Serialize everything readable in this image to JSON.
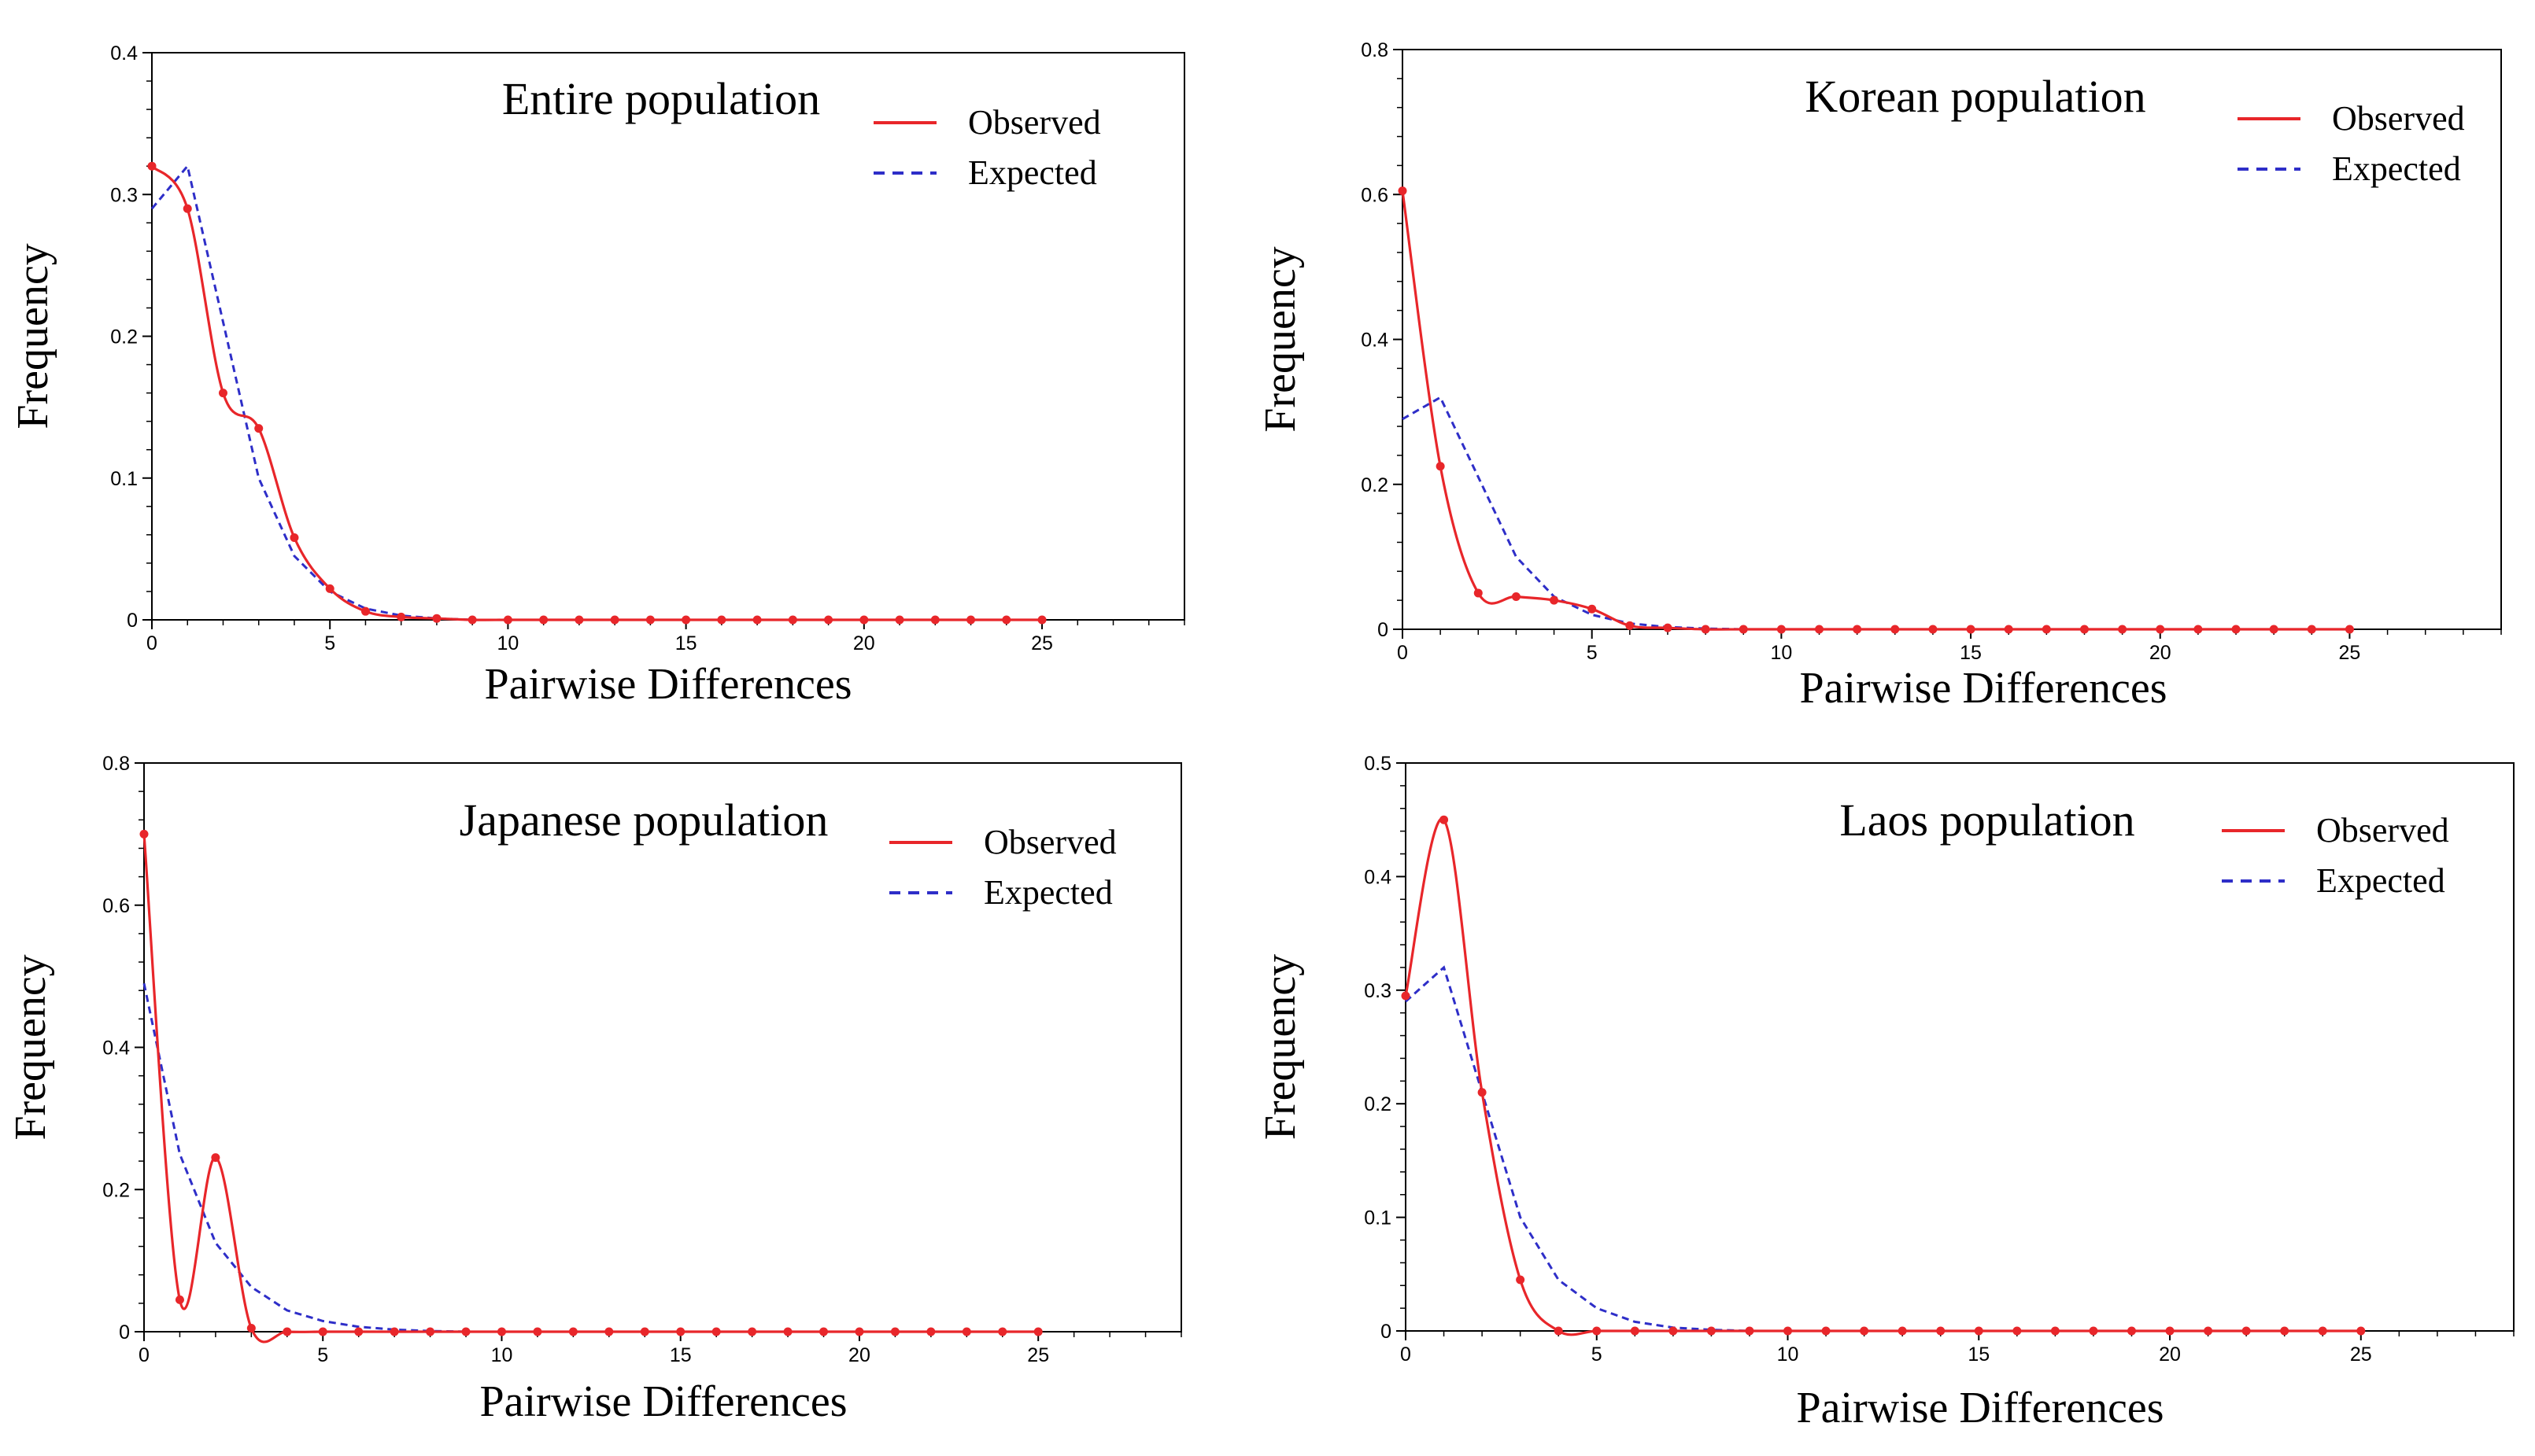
{
  "chart_data": [
    {
      "type": "line",
      "title": "Entire population",
      "xlabel": "Pairwise Differences",
      "ylabel": "Frequency",
      "xlim": [
        0,
        29
      ],
      "ylim": [
        0,
        0.4
      ],
      "xticks": [
        0,
        5,
        10,
        15,
        20,
        25
      ],
      "xtick_labels": [
        "0",
        "5",
        "10",
        "15",
        "20",
        "25"
      ],
      "yticks": [
        0,
        0.1,
        0.2,
        0.3,
        0.4
      ],
      "ytick_labels": [
        "0",
        "0.1",
        "0.2",
        "0.3",
        "0.4"
      ],
      "legend": [
        "Observed",
        "Expected"
      ],
      "legend_position": "top-right",
      "x": [
        0,
        1,
        2,
        3,
        4,
        5,
        6,
        7,
        8,
        9,
        10,
        11,
        12,
        13,
        14,
        15,
        16,
        17,
        18,
        19,
        20,
        21,
        22,
        23,
        24,
        25
      ],
      "series": [
        {
          "name": "Observed",
          "color": "#e8262a",
          "style": "solid",
          "values": [
            0.32,
            0.29,
            0.16,
            0.135,
            0.058,
            0.022,
            0.006,
            0.002,
            0.001,
            0,
            0,
            0,
            0,
            0,
            0,
            0,
            0,
            0,
            0,
            0,
            0,
            0,
            0,
            0,
            0,
            0
          ]
        },
        {
          "name": "Expected",
          "color": "#2e2ec8",
          "style": "dashed",
          "values": [
            0.29,
            0.32,
            0.21,
            0.1,
            0.045,
            0.02,
            0.008,
            0.003,
            0.001,
            0,
            0,
            0,
            0,
            0,
            0,
            0,
            0,
            0,
            0,
            0,
            0,
            0,
            0,
            0,
            0,
            0
          ]
        }
      ]
    },
    {
      "type": "line",
      "title": "Korean population",
      "xlabel": "Pairwise Differences",
      "ylabel": "Frequency",
      "xlim": [
        0,
        29
      ],
      "ylim": [
        0,
        0.8
      ],
      "xticks": [
        0,
        5,
        10,
        15,
        20,
        25
      ],
      "xtick_labels": [
        "0",
        "5",
        "10",
        "15",
        "20",
        "25"
      ],
      "yticks": [
        0,
        0.2,
        0.4,
        0.6,
        0.8
      ],
      "ytick_labels": [
        "0",
        "0.2",
        "0.4",
        "0.6",
        "0.8"
      ],
      "legend": [
        "Observed",
        "Expected"
      ],
      "legend_position": "top-right",
      "x": [
        0,
        1,
        2,
        3,
        4,
        5,
        6,
        7,
        8,
        9,
        10,
        11,
        12,
        13,
        14,
        15,
        16,
        17,
        18,
        19,
        20,
        21,
        22,
        23,
        24,
        25
      ],
      "series": [
        {
          "name": "Observed",
          "color": "#e8262a",
          "style": "solid",
          "values": [
            0.605,
            0.225,
            0.05,
            0.045,
            0.04,
            0.028,
            0.005,
            0.002,
            0,
            0,
            0,
            0,
            0,
            0,
            0,
            0,
            0,
            0,
            0,
            0,
            0,
            0,
            0,
            0,
            0,
            0
          ]
        },
        {
          "name": "Expected",
          "color": "#2e2ec8",
          "style": "dashed",
          "values": [
            0.29,
            0.32,
            0.21,
            0.1,
            0.045,
            0.02,
            0.008,
            0.003,
            0.001,
            0,
            0,
            0,
            0,
            0,
            0,
            0,
            0,
            0,
            0,
            0,
            0,
            0,
            0,
            0,
            0,
            0
          ]
        }
      ]
    },
    {
      "type": "line",
      "title": "Japanese population",
      "xlabel": "Pairwise Differences",
      "ylabel": "Frequency",
      "xlim": [
        0,
        29
      ],
      "ylim": [
        0,
        0.8
      ],
      "xticks": [
        0,
        5,
        10,
        15,
        20,
        25
      ],
      "xtick_labels": [
        "0",
        "5",
        "10",
        "15",
        "20",
        "25"
      ],
      "yticks": [
        0,
        0.2,
        0.4,
        0.6,
        0.8
      ],
      "ytick_labels": [
        "0",
        "0.2",
        "0.4",
        "0.6",
        "0.8"
      ],
      "legend": [
        "Observed",
        "Expected"
      ],
      "legend_position": "top-right",
      "x": [
        0,
        1,
        2,
        3,
        4,
        5,
        6,
        7,
        8,
        9,
        10,
        11,
        12,
        13,
        14,
        15,
        16,
        17,
        18,
        19,
        20,
        21,
        22,
        23,
        24,
        25
      ],
      "series": [
        {
          "name": "Observed",
          "color": "#e8262a",
          "style": "solid",
          "values": [
            0.7,
            0.045,
            0.245,
            0.005,
            0,
            0,
            0,
            0,
            0,
            0,
            0,
            0,
            0,
            0,
            0,
            0,
            0,
            0,
            0,
            0,
            0,
            0,
            0,
            0,
            0,
            0
          ]
        },
        {
          "name": "Expected",
          "color": "#2e2ec8",
          "style": "dashed",
          "values": [
            0.49,
            0.25,
            0.125,
            0.063,
            0.03,
            0.015,
            0.007,
            0.003,
            0.001,
            0,
            0,
            0,
            0,
            0,
            0,
            0,
            0,
            0,
            0,
            0,
            0,
            0,
            0,
            0,
            0,
            0
          ]
        }
      ]
    },
    {
      "type": "line",
      "title": "Laos population",
      "xlabel": "Pairwise Differences",
      "ylabel": "Frequency",
      "xlim": [
        0,
        29
      ],
      "ylim": [
        0,
        0.5
      ],
      "xticks": [
        0,
        5,
        10,
        15,
        20,
        25
      ],
      "xtick_labels": [
        "0",
        "5",
        "10",
        "15",
        "20",
        "25"
      ],
      "yticks": [
        0,
        0.1,
        0.2,
        0.3,
        0.4,
        0.5
      ],
      "ytick_labels": [
        "0",
        "0.1",
        "0.2",
        "0.3",
        "0.4",
        "0.5"
      ],
      "legend": [
        "Observed",
        "Expected"
      ],
      "legend_position": "top-right",
      "x": [
        0,
        1,
        2,
        3,
        4,
        5,
        6,
        7,
        8,
        9,
        10,
        11,
        12,
        13,
        14,
        15,
        16,
        17,
        18,
        19,
        20,
        21,
        22,
        23,
        24,
        25
      ],
      "series": [
        {
          "name": "Observed",
          "color": "#e8262a",
          "style": "solid",
          "values": [
            0.295,
            0.45,
            0.21,
            0.045,
            0,
            0,
            0,
            0,
            0,
            0,
            0,
            0,
            0,
            0,
            0,
            0,
            0,
            0,
            0,
            0,
            0,
            0,
            0,
            0,
            0,
            0
          ]
        },
        {
          "name": "Expected",
          "color": "#2e2ec8",
          "style": "dashed",
          "values": [
            0.29,
            0.32,
            0.21,
            0.1,
            0.045,
            0.02,
            0.008,
            0.003,
            0.001,
            0,
            0,
            0,
            0,
            0,
            0,
            0,
            0,
            0,
            0,
            0,
            0,
            0,
            0,
            0,
            0,
            0
          ]
        }
      ]
    }
  ]
}
